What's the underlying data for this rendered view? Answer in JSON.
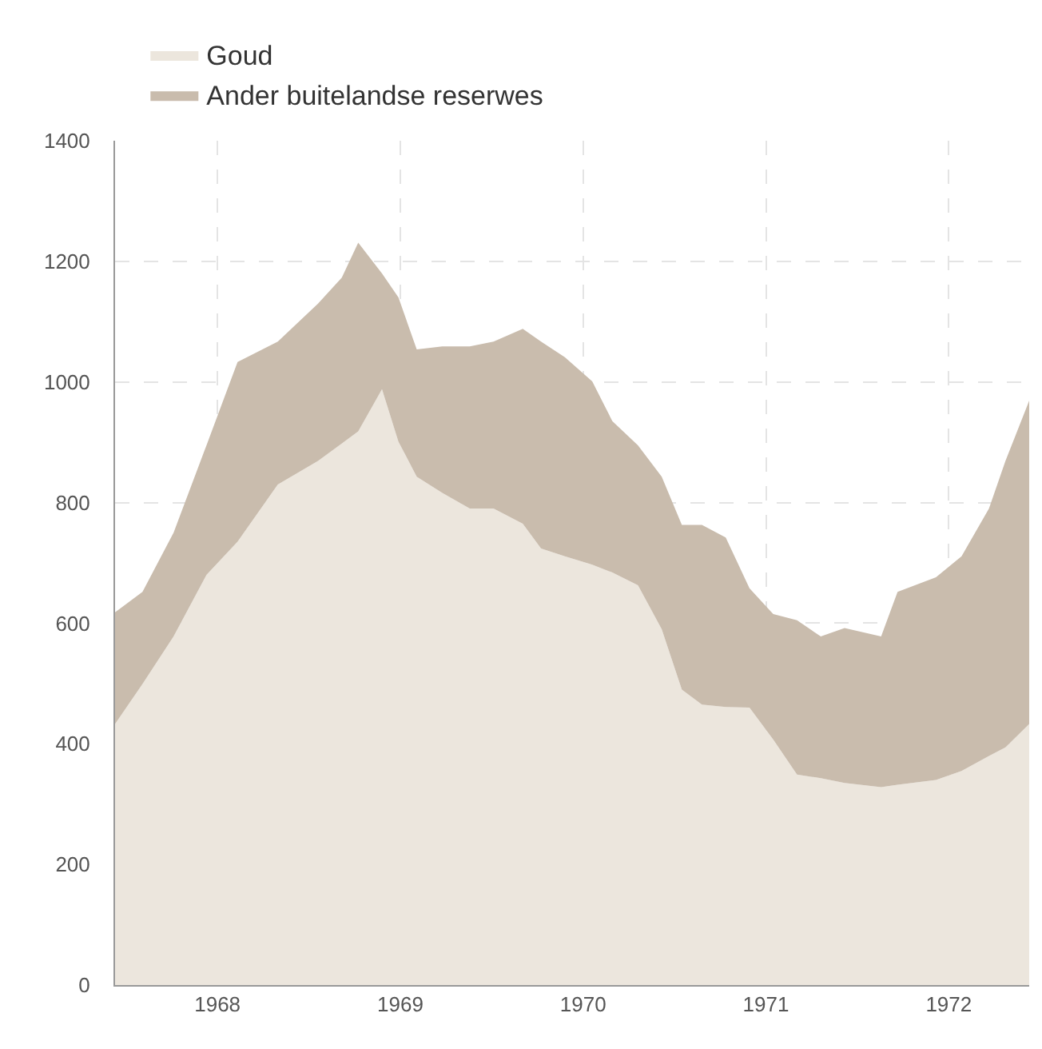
{
  "chart_data": {
    "type": "area",
    "stacked": true,
    "x": [
      1967.94,
      1968.09,
      1968.26,
      1968.44,
      1968.61,
      1968.83,
      1969.05,
      1969.18,
      1969.27,
      1969.4,
      1969.49,
      1969.59,
      1969.73,
      1969.88,
      1970.01,
      1970.17,
      1970.27,
      1970.4,
      1970.55,
      1970.66,
      1970.8,
      1970.93,
      1971.04,
      1971.15,
      1971.28,
      1971.41,
      1971.54,
      1971.67,
      1971.8,
      1971.93,
      1972.13,
      1972.22,
      1972.43,
      1972.57,
      1972.72,
      1972.81,
      1972.94
    ],
    "series": [
      {
        "name": "Goud",
        "color": "#ece6dd",
        "values": [
          433,
          499,
          578,
          680,
          735,
          830,
          869,
          898,
          918,
          988,
          901,
          843,
          816,
          790,
          790,
          765,
          724,
          711,
          697,
          684,
          663,
          590,
          490,
          465,
          461,
          460,
          407,
          349,
          343,
          335,
          328,
          332,
          340,
          355,
          380,
          394,
          433
        ]
      },
      {
        "name": "Ander buitelandse reserwes",
        "color": "#c9bcad",
        "values": [
          185,
          153,
          172,
          215,
          298,
          237,
          261,
          275,
          313,
          192,
          239,
          211,
          243,
          269,
          277,
          323,
          343,
          330,
          304,
          251,
          232,
          253,
          273,
          298,
          281,
          198,
          208,
          256,
          235,
          257,
          250,
          320,
          336,
          356,
          410,
          475,
          536
        ]
      }
    ],
    "xlim": [
      1967.94,
      1972.94
    ],
    "xticks": [
      {
        "value": 1968.5,
        "label": "1968"
      },
      {
        "value": 1969.5,
        "label": "1969"
      },
      {
        "value": 1970.5,
        "label": "1970"
      },
      {
        "value": 1971.5,
        "label": "1971"
      },
      {
        "value": 1972.5,
        "label": "1972"
      }
    ],
    "ylim": [
      0,
      1400
    ],
    "yticks": [
      0,
      200,
      400,
      600,
      800,
      1000,
      1200,
      1400
    ],
    "grid": true,
    "legend": "top left"
  }
}
